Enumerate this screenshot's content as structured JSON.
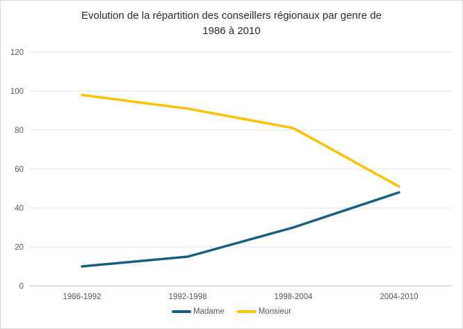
{
  "chart_data": {
    "type": "line",
    "title": "Evolution de la répartition des conseillers régionaux par genre de 1986 à 2010",
    "title_lines": [
      "Evolution de la répartition des conseillers régionaux par genre de",
      "1986 à 2010"
    ],
    "categories": [
      "1986-1992",
      "1992-1998",
      "1998-2004",
      "2004-2010"
    ],
    "series": [
      {
        "name": "Madame",
        "color": "#156082",
        "values": [
          10,
          15,
          30,
          48
        ]
      },
      {
        "name": "Monsieur",
        "color": "#FFC000",
        "values": [
          98,
          91,
          81,
          51
        ]
      }
    ],
    "xlabel": "",
    "ylabel": "",
    "ylim": [
      0,
      120
    ],
    "yticks": [
      0,
      20,
      40,
      60,
      80,
      100,
      120
    ],
    "grid": true,
    "legend_position": "bottom"
  },
  "colors": {
    "background": "#FFFFFF",
    "border": "#D9D9D9",
    "gridline": "#E2E2E2",
    "axis_line": "#BFBFBF",
    "tick_label": "#595959",
    "title": "#2B2B2B"
  }
}
